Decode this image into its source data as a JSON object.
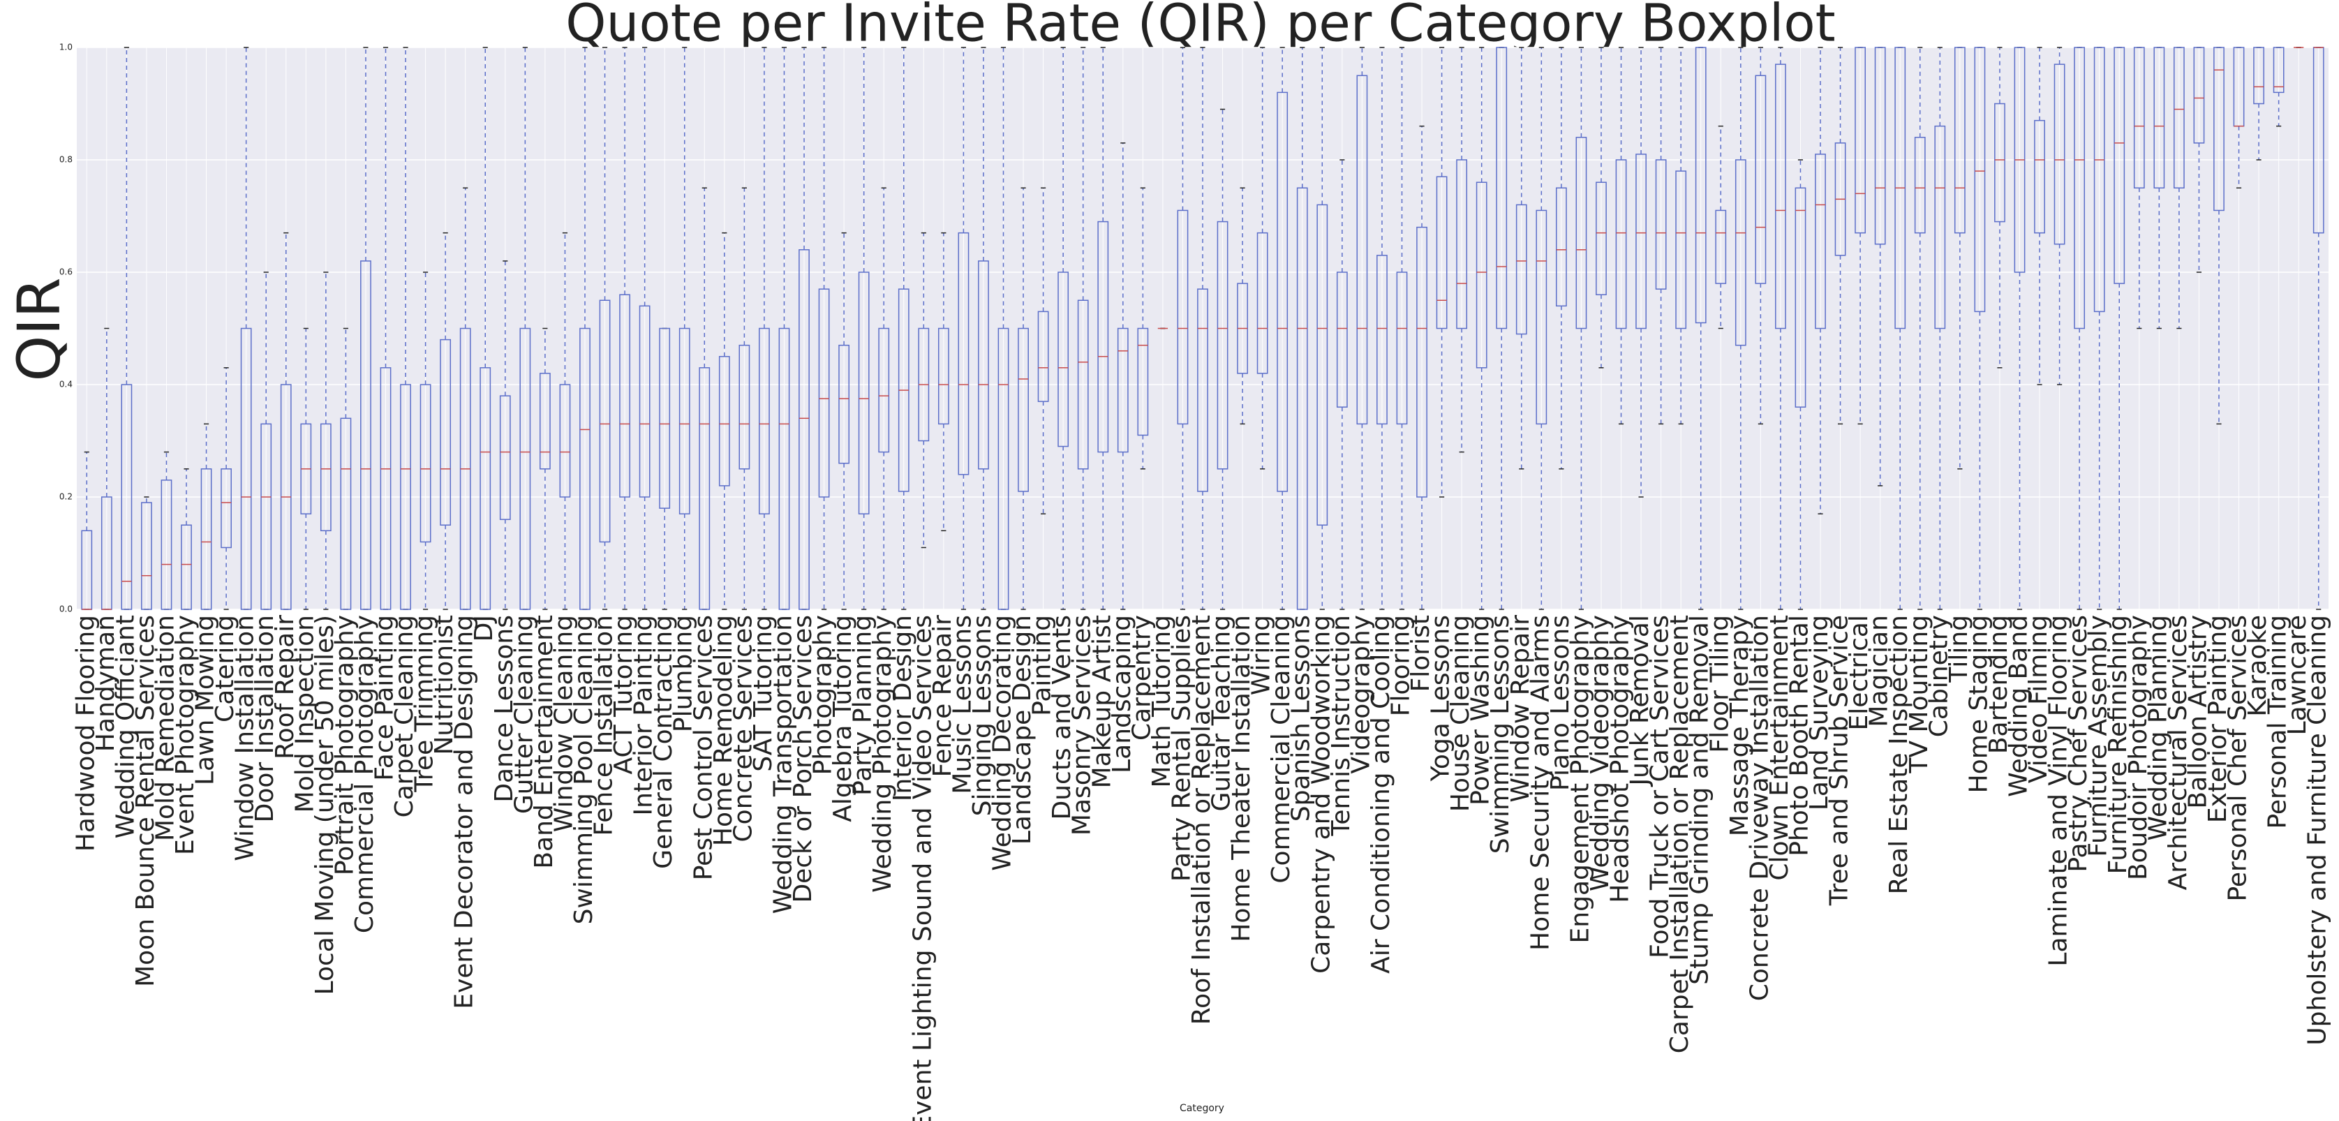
{
  "chart_data": {
    "type": "box",
    "title": "Quote per Invite Rate (QIR) per Category Boxplot",
    "x_label": "Category",
    "y_label": "QIR",
    "ylim": [
      0,
      1
    ],
    "yticks": [
      {
        "value": 0,
        "label": "0.0"
      },
      0.2,
      0.4,
      0.6,
      0.8,
      {
        "value": 1,
        "label": "1.0"
      }
    ],
    "grid": true,
    "box_color": "#5b6ec9",
    "median_color": "#c84a4a",
    "cap_color": "#222222",
    "categories": [
      "Hardwood Flooring",
      "Handyman",
      "Wedding Officiant",
      "Moon Bounce Rental Services",
      "Mold Remediation",
      "Event Photography",
      "Lawn Mowing",
      "Catering",
      "Window Installation",
      "Door Installation",
      "Roof Repair",
      "Mold Inspection",
      "Local Moving (under 50 miles)",
      "Portrait Photography",
      "Commercial Photography",
      "Face Painting",
      "Carpet Cleaning",
      "Tree Trimming",
      "Nutritionist",
      "Event Decorator and Designing",
      "DJ",
      "Dance Lessons",
      "Gutter Cleaning",
      "Band Entertainment",
      "Window Cleaning",
      "Swimming Pool Cleaning",
      "Fence Installation",
      "ACT Tutoring",
      "Interior Painting",
      "General Contracting",
      "Plumbing",
      "Pest Control Services",
      "Home Remodeling",
      "Concrete Services",
      "SAT Tutoring",
      "Wedding Transportation",
      "Deck or Porch Services",
      "Photography",
      "Algebra Tutoring",
      "Party Planning",
      "Wedding Photography",
      "Interior Design",
      "Event Lighting Sound and Video Services",
      "Fence Repair",
      "Music Lessons",
      "Singing Lessons",
      "Wedding Decorating",
      "Landscape Design",
      "Painting",
      "Ducts and Vents",
      "Masonry Services",
      "Makeup Artist",
      "Landscaping",
      "Carpentry",
      "Math Tutoring",
      "Party Rental Supplies",
      "Roof Installation or Replacement",
      "Guitar Teaching",
      "Home Theater Installation",
      "Wiring",
      "Commercial Cleaning",
      "Spanish Lessons",
      "Carpentry and Woodworking",
      "Tennis Instruction",
      "Videography",
      "Air Conditioning and Cooling",
      "Flooring",
      "Florist",
      "Yoga Lessons",
      "House Cleaning",
      "Power Washing",
      "Swimming Lessons",
      "Window Repair",
      "Home Security and Alarms",
      "Piano Lessons",
      "Engagement Photography",
      "Wedding Videography",
      "Headshot Photography",
      "Junk Removal",
      "Food Truck or Cart Services",
      "Carpet Installation or Replacement",
      "Stump Grinding and Removal",
      "Floor Tiling",
      "Massage Therapy",
      "Concrete Driveway Installation",
      "Clown Entertainment",
      "Photo Booth Rental",
      "Land Surveying",
      "Tree and Shrub Service",
      "Electrical",
      "Magician",
      "Real Estate Inspection",
      "TV Mounting",
      "Cabinetry",
      "Tiling",
      "Home Staging",
      "Bartending",
      "Wedding Band",
      "Video Filming",
      "Laminate and Vinyl Flooring",
      "Pastry Chef Services",
      "Furniture Assembly",
      "Furniture Refinishing",
      "Boudoir Photography",
      "Wedding Planning",
      "Architectural Services",
      "Balloon Artistry",
      "Exterior Painting",
      "Personal Chef Services",
      "Karaoke",
      "Personal Training",
      "Lawncare",
      "Upholstery and Furniture Cleaning"
    ],
    "min": [
      0,
      0,
      0,
      0,
      0,
      0,
      0,
      0,
      0,
      0,
      0,
      0,
      0,
      0,
      0,
      0,
      0,
      0,
      0,
      0,
      0,
      0,
      0,
      0,
      0,
      0,
      0,
      0,
      0,
      0,
      0,
      0,
      0,
      0,
      0,
      0,
      0,
      0,
      0,
      0,
      0,
      0,
      0.11,
      0.14,
      0,
      0,
      0,
      0,
      0.17,
      0,
      0,
      0,
      0,
      0.25,
      0.5,
      0,
      0,
      0,
      0.33,
      0.25,
      0,
      0,
      0,
      0,
      0,
      0,
      0,
      0,
      0.2,
      0.28,
      0,
      0,
      0.25,
      0,
      0.25,
      0,
      0.43,
      0.33,
      0.2,
      0.33,
      0.33,
      0,
      0.5,
      0,
      0.33,
      0,
      0,
      0.17,
      0.33,
      0.33,
      0.22,
      0,
      0,
      0,
      0.25,
      0,
      0.43,
      0,
      0.4,
      0.4,
      0,
      0,
      0,
      0.5,
      0.5,
      0.5,
      0.6,
      0.33,
      0.75,
      0.8,
      0.86,
      1,
      0
    ],
    "q1": [
      0,
      0,
      0,
      0,
      0,
      0,
      0,
      0.11,
      0,
      0,
      0,
      0.17,
      0.14,
      0,
      0,
      0,
      0,
      0.12,
      0.15,
      0,
      0,
      0.16,
      0,
      0.25,
      0.2,
      0,
      0.12,
      0.2,
      0.2,
      0.18,
      0.17,
      0,
      0.22,
      0.25,
      0.17,
      0,
      0,
      0.2,
      0.26,
      0.17,
      0.28,
      0.21,
      0.3,
      0.33,
      0.24,
      0.25,
      0,
      0.21,
      0.37,
      0.29,
      0.25,
      0.28,
      0.28,
      0.31,
      0.5,
      0.33,
      0.21,
      0.25,
      0.42,
      0.42,
      0.21,
      0,
      0.15,
      0.36,
      0.33,
      0.33,
      0.33,
      0.2,
      0.5,
      0.5,
      0.43,
      0.5,
      0.49,
      0.33,
      0.54,
      0.5,
      0.56,
      0.5,
      0.5,
      0.57,
      0.5,
      0.51,
      0.58,
      0.47,
      0.58,
      0.5,
      0.36,
      0.5,
      0.63,
      0.67,
      0.65,
      0.5,
      0.67,
      0.5,
      0.67,
      0.53,
      0.69,
      0.6,
      0.67,
      0.65,
      0.5,
      0.53,
      0.58,
      0.75,
      0.75,
      0.75,
      0.83,
      0.71,
      0.86,
      0.9,
      0.92,
      1,
      0.67
    ],
    "median": [
      0,
      0,
      0.05,
      0.06,
      0.08,
      0.08,
      0.12,
      0.19,
      0.2,
      0.2,
      0.2,
      0.25,
      0.25,
      0.25,
      0.25,
      0.25,
      0.25,
      0.25,
      0.25,
      0.25,
      0.28,
      0.28,
      0.28,
      0.28,
      0.28,
      0.32,
      0.33,
      0.33,
      0.33,
      0.33,
      0.33,
      0.33,
      0.33,
      0.33,
      0.33,
      0.33,
      0.34,
      0.375,
      0.375,
      0.375,
      0.38,
      0.39,
      0.4,
      0.4,
      0.4,
      0.4,
      0.4,
      0.41,
      0.43,
      0.43,
      0.44,
      0.45,
      0.46,
      0.47,
      0.5,
      0.5,
      0.5,
      0.5,
      0.5,
      0.5,
      0.5,
      0.5,
      0.5,
      0.5,
      0.5,
      0.5,
      0.5,
      0.5,
      0.55,
      0.58,
      0.6,
      0.61,
      0.62,
      0.62,
      0.64,
      0.64,
      0.67,
      0.67,
      0.67,
      0.67,
      0.67,
      0.67,
      0.67,
      0.67,
      0.68,
      0.71,
      0.71,
      0.72,
      0.73,
      0.74,
      0.75,
      0.75,
      0.75,
      0.75,
      0.75,
      0.78,
      0.8,
      0.8,
      0.8,
      0.8,
      0.8,
      0.8,
      0.83,
      0.86,
      0.86,
      0.89,
      0.91,
      0.96,
      0.86,
      0.93,
      0.93,
      1,
      1
    ],
    "q3": [
      0.14,
      0.2,
      0.4,
      0.19,
      0.23,
      0.15,
      0.25,
      0.25,
      0.5,
      0.33,
      0.4,
      0.33,
      0.33,
      0.34,
      0.62,
      0.43,
      0.4,
      0.4,
      0.48,
      0.5,
      0.43,
      0.38,
      0.5,
      0.42,
      0.4,
      0.5,
      0.55,
      0.56,
      0.54,
      0.5,
      0.5,
      0.43,
      0.45,
      0.47,
      0.5,
      0.5,
      0.64,
      0.57,
      0.47,
      0.6,
      0.5,
      0.57,
      0.5,
      0.5,
      0.67,
      0.62,
      0.5,
      0.5,
      0.53,
      0.6,
      0.55,
      0.69,
      0.5,
      0.5,
      0.5,
      0.71,
      0.57,
      0.69,
      0.58,
      0.67,
      0.92,
      0.75,
      0.72,
      0.6,
      0.95,
      0.63,
      0.6,
      0.68,
      0.77,
      0.8,
      0.76,
      1,
      0.72,
      0.71,
      0.75,
      0.84,
      0.76,
      0.8,
      0.81,
      0.8,
      0.78,
      1,
      0.71,
      0.8,
      0.95,
      0.97,
      0.75,
      0.81,
      0.83,
      1,
      1,
      1,
      0.84,
      0.86,
      1,
      1,
      0.9,
      1,
      0.87,
      0.97,
      1,
      1,
      1,
      1,
      1,
      1,
      1,
      1,
      1,
      1,
      1,
      1,
      1
    ],
    "max": [
      0.28,
      0.5,
      1,
      0.2,
      0.28,
      0.25,
      0.33,
      0.43,
      1,
      0.6,
      0.67,
      0.5,
      0.6,
      0.5,
      1,
      1,
      1,
      0.6,
      0.67,
      0.75,
      1,
      0.62,
      1,
      0.5,
      0.67,
      1,
      1,
      1,
      1,
      0.5,
      1,
      0.75,
      0.67,
      0.75,
      1,
      1,
      1,
      1,
      0.67,
      1,
      0.75,
      1,
      0.67,
      0.67,
      1,
      1,
      1,
      0.75,
      0.75,
      1,
      1,
      1,
      0.83,
      0.75,
      0.5,
      1,
      1,
      0.89,
      0.75,
      1,
      1,
      1,
      1,
      0.8,
      1,
      1,
      1,
      0.86,
      1,
      1,
      1,
      1,
      1,
      1,
      1,
      1,
      1,
      1,
      1,
      1,
      1,
      1,
      0.86,
      1,
      1,
      1,
      0.8,
      1,
      1,
      1,
      1,
      1,
      1,
      1,
      1,
      1,
      1,
      1,
      1,
      1,
      1,
      1,
      1,
      1,
      1,
      1,
      1,
      1,
      1,
      1,
      1,
      1,
      1
    ]
  }
}
